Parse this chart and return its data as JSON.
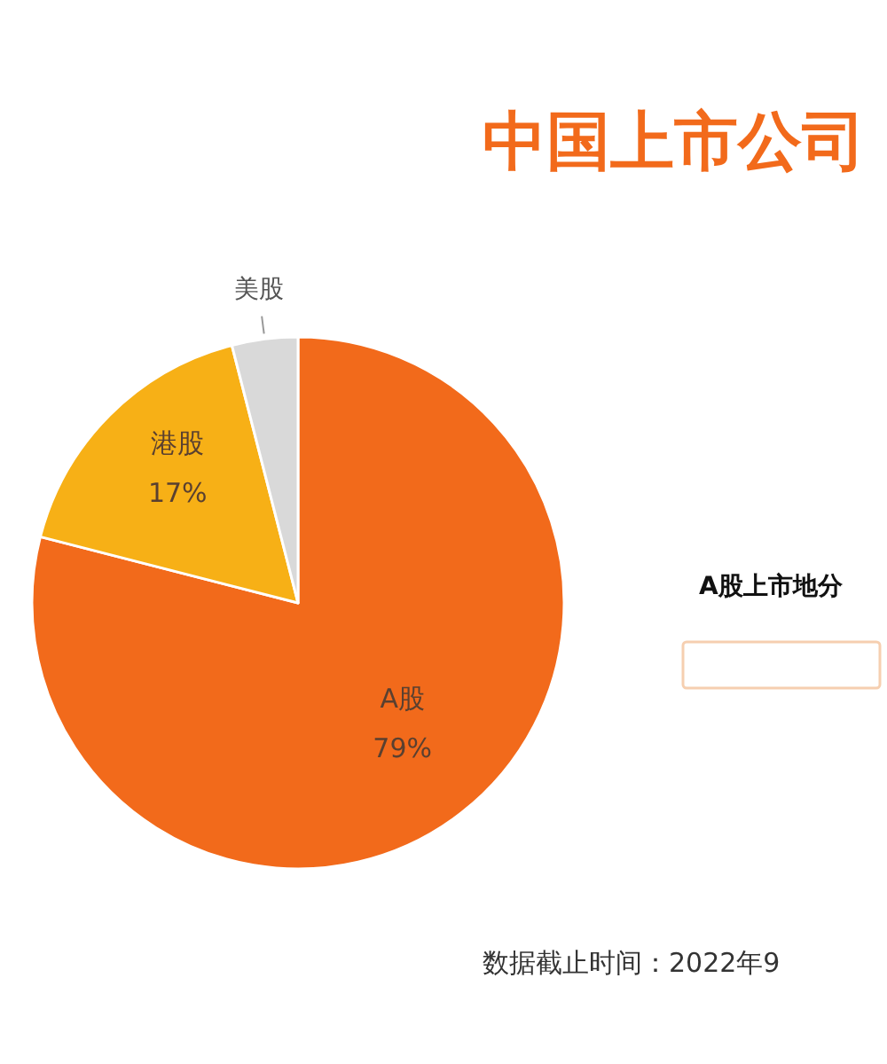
{
  "chart_data": [
    {
      "type": "pie",
      "title": "中国上市公司",
      "categories": [
        "A股",
        "港股",
        "美股"
      ],
      "values": [
        79,
        17,
        4
      ],
      "colors": [
        "#f26a1b",
        "#f7b016",
        "#d9d9d9"
      ],
      "value_labels": [
        "79%",
        "17%",
        null
      ],
      "annotations": [
        "数据截止时间：2022年9"
      ]
    },
    {
      "type": "other",
      "title": "A股上市地分"
    }
  ]
}
